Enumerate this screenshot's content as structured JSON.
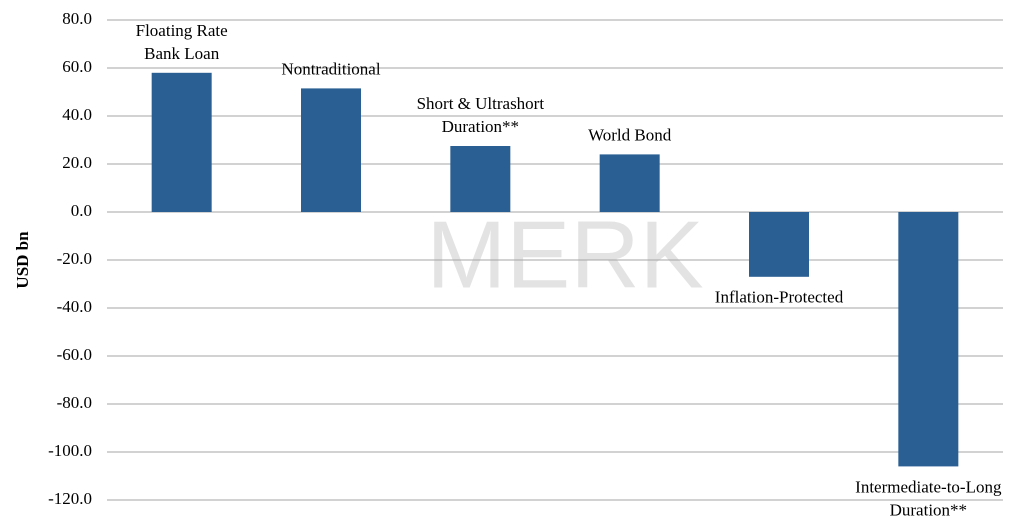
{
  "chart_data": {
    "type": "bar",
    "y_axis_label": "USD bn",
    "watermark": "MERK",
    "categories": [
      "Floating Rate\nBank Loan",
      "Nontraditional",
      "Short & Ultrashort\nDuration**",
      "World Bond",
      "Inflation-Protected",
      "Intermediate-to-Long\nDuration**"
    ],
    "values": [
      58,
      51.5,
      27.5,
      24,
      -27,
      -106
    ],
    "color": "#2a5f93",
    "ylim": [
      -120,
      80
    ],
    "yticks": [
      {
        "value": 80,
        "label": "80.0"
      },
      {
        "value": 60,
        "label": "60.0"
      },
      {
        "value": 40,
        "label": "40.0"
      },
      {
        "value": 20,
        "label": "20.0"
      },
      {
        "value": 0,
        "label": "0.0"
      },
      {
        "value": -20,
        "label": "-20.0"
      },
      {
        "value": -40,
        "label": "-40.0"
      },
      {
        "value": -60,
        "label": "-60.0"
      },
      {
        "value": -80,
        "label": "-80.0"
      },
      {
        "value": -100,
        "label": "-100.0"
      },
      {
        "value": -120,
        "label": "-120.0"
      }
    ],
    "grid": true
  }
}
